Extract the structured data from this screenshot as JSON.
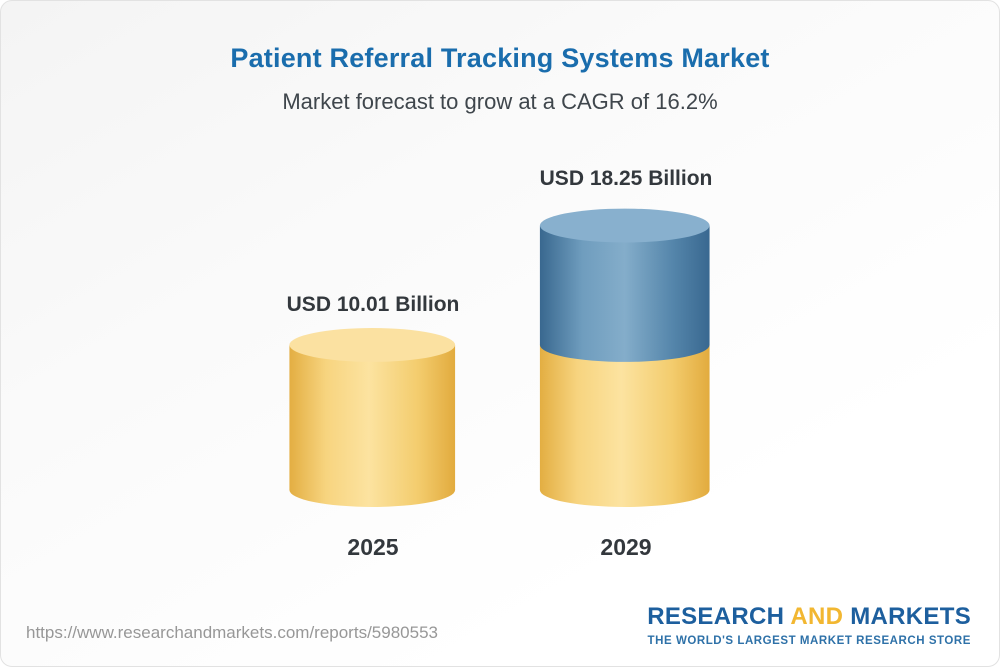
{
  "header": {
    "title": "Patient Referral Tracking Systems Market",
    "subtitle": "Market forecast to grow at a CAGR of 16.2%"
  },
  "chart_data": {
    "type": "bar",
    "variant": "3d-cylinder",
    "title": "Patient Referral Tracking Systems Market",
    "subtitle": "Market forecast to grow at a CAGR of 16.2%",
    "unit": "USD Billion",
    "categories": [
      "2025",
      "2029"
    ],
    "values": [
      10.01,
      18.25
    ],
    "value_labels": [
      "USD 10.01 Billion",
      "USD 18.25 Billion"
    ],
    "ylim": [
      0,
      18.25
    ],
    "cagr": "16.2%",
    "legend": "none",
    "grid": "off",
    "colors": {
      "base_segment": "#f6cd67",
      "growth_segment": "#4e80a8"
    },
    "notes": "2029 cylinder is stacked: yellow base equals the 2025 value, blue section is growth above it"
  },
  "footer": {
    "url": "https://www.researchandmarkets.com/reports/5980553",
    "logo": {
      "word1": "RESEARCH",
      "word2": "AND",
      "word3": "MARKETS",
      "tagline": "THE WORLD'S LARGEST MARKET RESEARCH STORE"
    }
  }
}
